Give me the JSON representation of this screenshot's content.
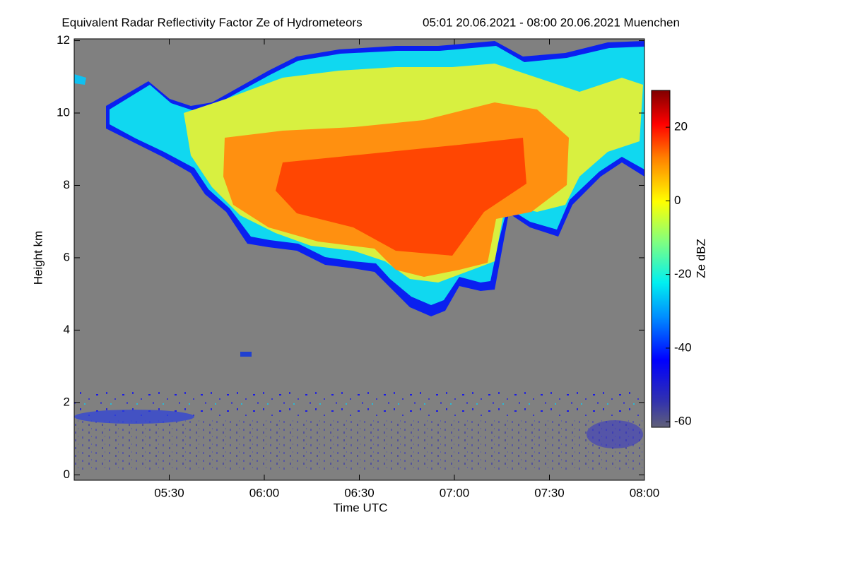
{
  "chart_data": {
    "type": "heatmap",
    "title": "Equivalent Radar Reflectivity Factor Ze of Hydrometeors",
    "subtitle": "05:01 20.06.2021 - 08:00 20.06.2021 Muenchen",
    "x_label": "Time UTC",
    "y_label": "Height km",
    "xlim": [
      0,
      180
    ],
    "xticks": [
      {
        "value": 30,
        "label": "05:30"
      },
      {
        "value": 60,
        "label": "06:00"
      },
      {
        "value": 90,
        "label": "06:30"
      },
      {
        "value": 120,
        "label": "07:00"
      },
      {
        "value": 150,
        "label": "07:30"
      },
      {
        "value": 180,
        "label": "08:00"
      }
    ],
    "ylim": [
      -0.15,
      12.05
    ],
    "yticks": [
      0,
      2,
      4,
      6,
      8,
      10,
      12
    ],
    "colorbar_label": "Ze dBZ",
    "clim": [
      -61.5,
      30
    ],
    "colorbar_ticks": [
      -60,
      -40,
      -20,
      0,
      20
    ]
  }
}
